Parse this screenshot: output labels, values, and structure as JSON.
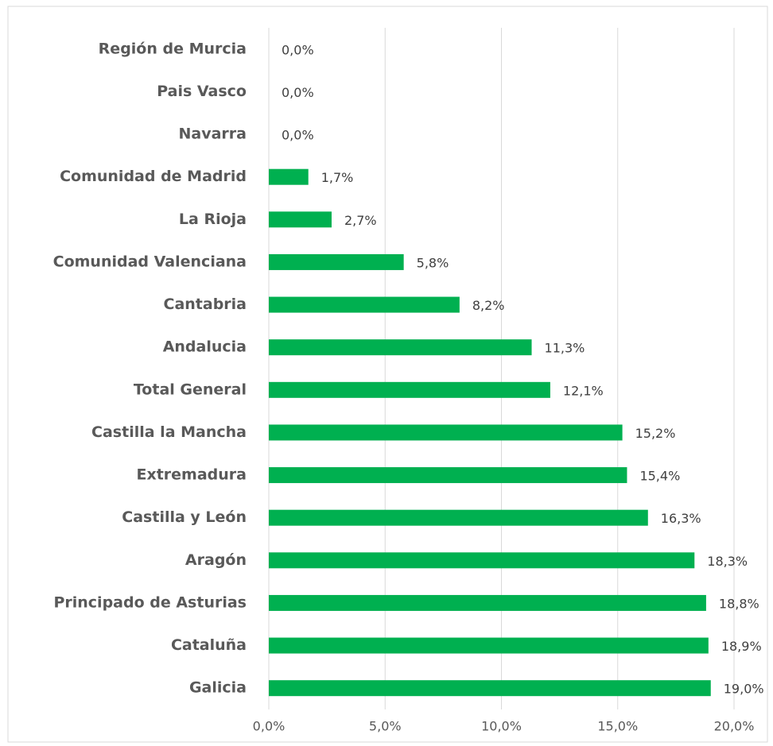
{
  "chart_data": {
    "type": "bar",
    "orientation": "horizontal",
    "categories": [
      "Región de Murcia",
      "Pais Vasco",
      "Navarra",
      "Comunidad de Madrid",
      "La Rioja",
      "Comunidad Valenciana",
      "Cantabria",
      "Andalucia",
      "Total General",
      "Castilla la Mancha",
      "Extremadura",
      "Castilla y León",
      "Aragón",
      "Principado de Asturias",
      "Cataluña",
      "Galicia"
    ],
    "values": [
      0,
      0,
      0,
      1.7,
      2.7,
      5.8,
      8.2,
      11.3,
      12.1,
      15.2,
      15.4,
      16.3,
      18.3,
      18.8,
      18.9,
      19.0
    ],
    "value_labels": [
      "0,0%",
      "0,0%",
      "0,0%",
      "1,7%",
      "2,7%",
      "5,8%",
      "8,2%",
      "11,3%",
      "12,1%",
      "15,2%",
      "15,4%",
      "16,3%",
      "18,3%",
      "18,8%",
      "18,9%",
      "19,0%"
    ],
    "color": "#00b050",
    "xlim": [
      0,
      20
    ],
    "xticks": [
      {
        "value": 0,
        "label": "0,0%"
      },
      {
        "value": 5,
        "label": "5,0%"
      },
      {
        "value": 10,
        "label": "10,0%"
      },
      {
        "value": 15,
        "label": "15,0%"
      },
      {
        "value": 20,
        "label": "20,0%"
      }
    ],
    "grid": true
  }
}
